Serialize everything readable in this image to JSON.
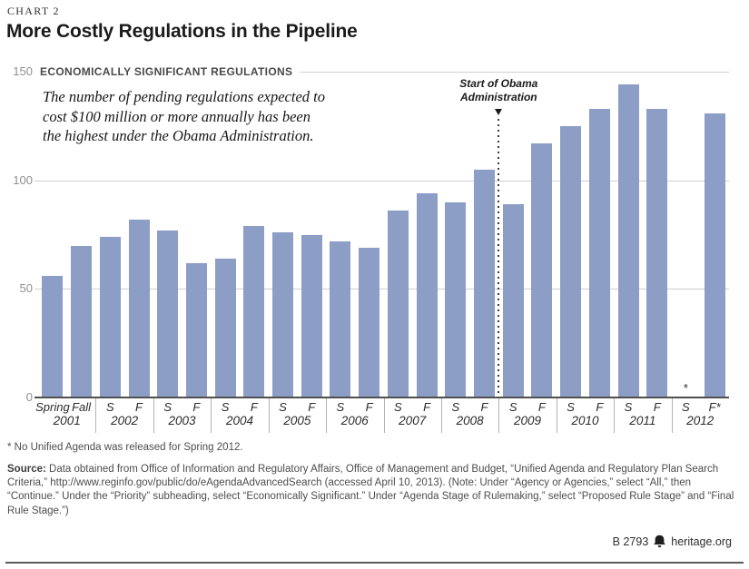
{
  "header": {
    "eyebrow": "CHART 2",
    "title": "More Costly Regulations in the Pipeline"
  },
  "annotation": {
    "lines": [
      "The number of pending regulations expected to",
      "cost $100 million or more annually has been",
      "the highest under the Obama Administration."
    ]
  },
  "marker": {
    "lines": [
      "Start of Obama",
      "Administration"
    ],
    "after_year": "2008"
  },
  "chart_data": {
    "type": "bar",
    "axis_title": "ECONOMICALLY SIGNIFICANT REGULATIONS",
    "ylim": [
      0,
      150
    ],
    "yticks": [
      0,
      50,
      100,
      150
    ],
    "grid": true,
    "legend": "none",
    "bar_color": "#8c9dc6",
    "marker_note": "Start of Obama Administration (dotted line between Fall 2008 and Spring 2009)",
    "groups": [
      {
        "year": "2001",
        "seasons": [
          "Spring",
          "Fall"
        ],
        "values": [
          56,
          70
        ]
      },
      {
        "year": "2002",
        "seasons": [
          "S",
          "F"
        ],
        "values": [
          74,
          82
        ]
      },
      {
        "year": "2003",
        "seasons": [
          "S",
          "F"
        ],
        "values": [
          77,
          62
        ]
      },
      {
        "year": "2004",
        "seasons": [
          "S",
          "F"
        ],
        "values": [
          64,
          79
        ]
      },
      {
        "year": "2005",
        "seasons": [
          "S",
          "F"
        ],
        "values": [
          76,
          75
        ]
      },
      {
        "year": "2006",
        "seasons": [
          "S",
          "F"
        ],
        "values": [
          72,
          69
        ]
      },
      {
        "year": "2007",
        "seasons": [
          "S",
          "F"
        ],
        "values": [
          86,
          94
        ]
      },
      {
        "year": "2008",
        "seasons": [
          "S",
          "F"
        ],
        "values": [
          90,
          105
        ]
      },
      {
        "year": "2009",
        "seasons": [
          "S",
          "F"
        ],
        "values": [
          89,
          117
        ]
      },
      {
        "year": "2010",
        "seasons": [
          "S",
          "F"
        ],
        "values": [
          125,
          133
        ]
      },
      {
        "year": "2011",
        "seasons": [
          "S",
          "F"
        ],
        "values": [
          144,
          133
        ]
      },
      {
        "year": "2012",
        "seasons": [
          "S",
          "F*"
        ],
        "values": [
          null,
          131
        ],
        "missing_note": "*"
      }
    ]
  },
  "footnote": "* No Unified Agenda was released for Spring 2012.",
  "source": {
    "label": "Source:",
    "text": " Data obtained from Office of Information and Regulatory Affairs, Office of Management and Budget, “Unified Agenda and Regulatory Plan Search Criteria,” http://www.reginfo.gov/public/do/eAgendaAdvancedSearch (accessed April 10, 2013). (Note: Under “Agency or Agencies,” select “All,” then “Continue.” Under the “Priority” subheading, select “Economically Significant.” Under “Agenda Stage of Rulemaking,” select “Proposed Rule Stage” and “Final Rule Stage.”)"
  },
  "footer": {
    "doc_id": "B 2793",
    "site": "heritage.org",
    "logo": "heritage-bell"
  }
}
